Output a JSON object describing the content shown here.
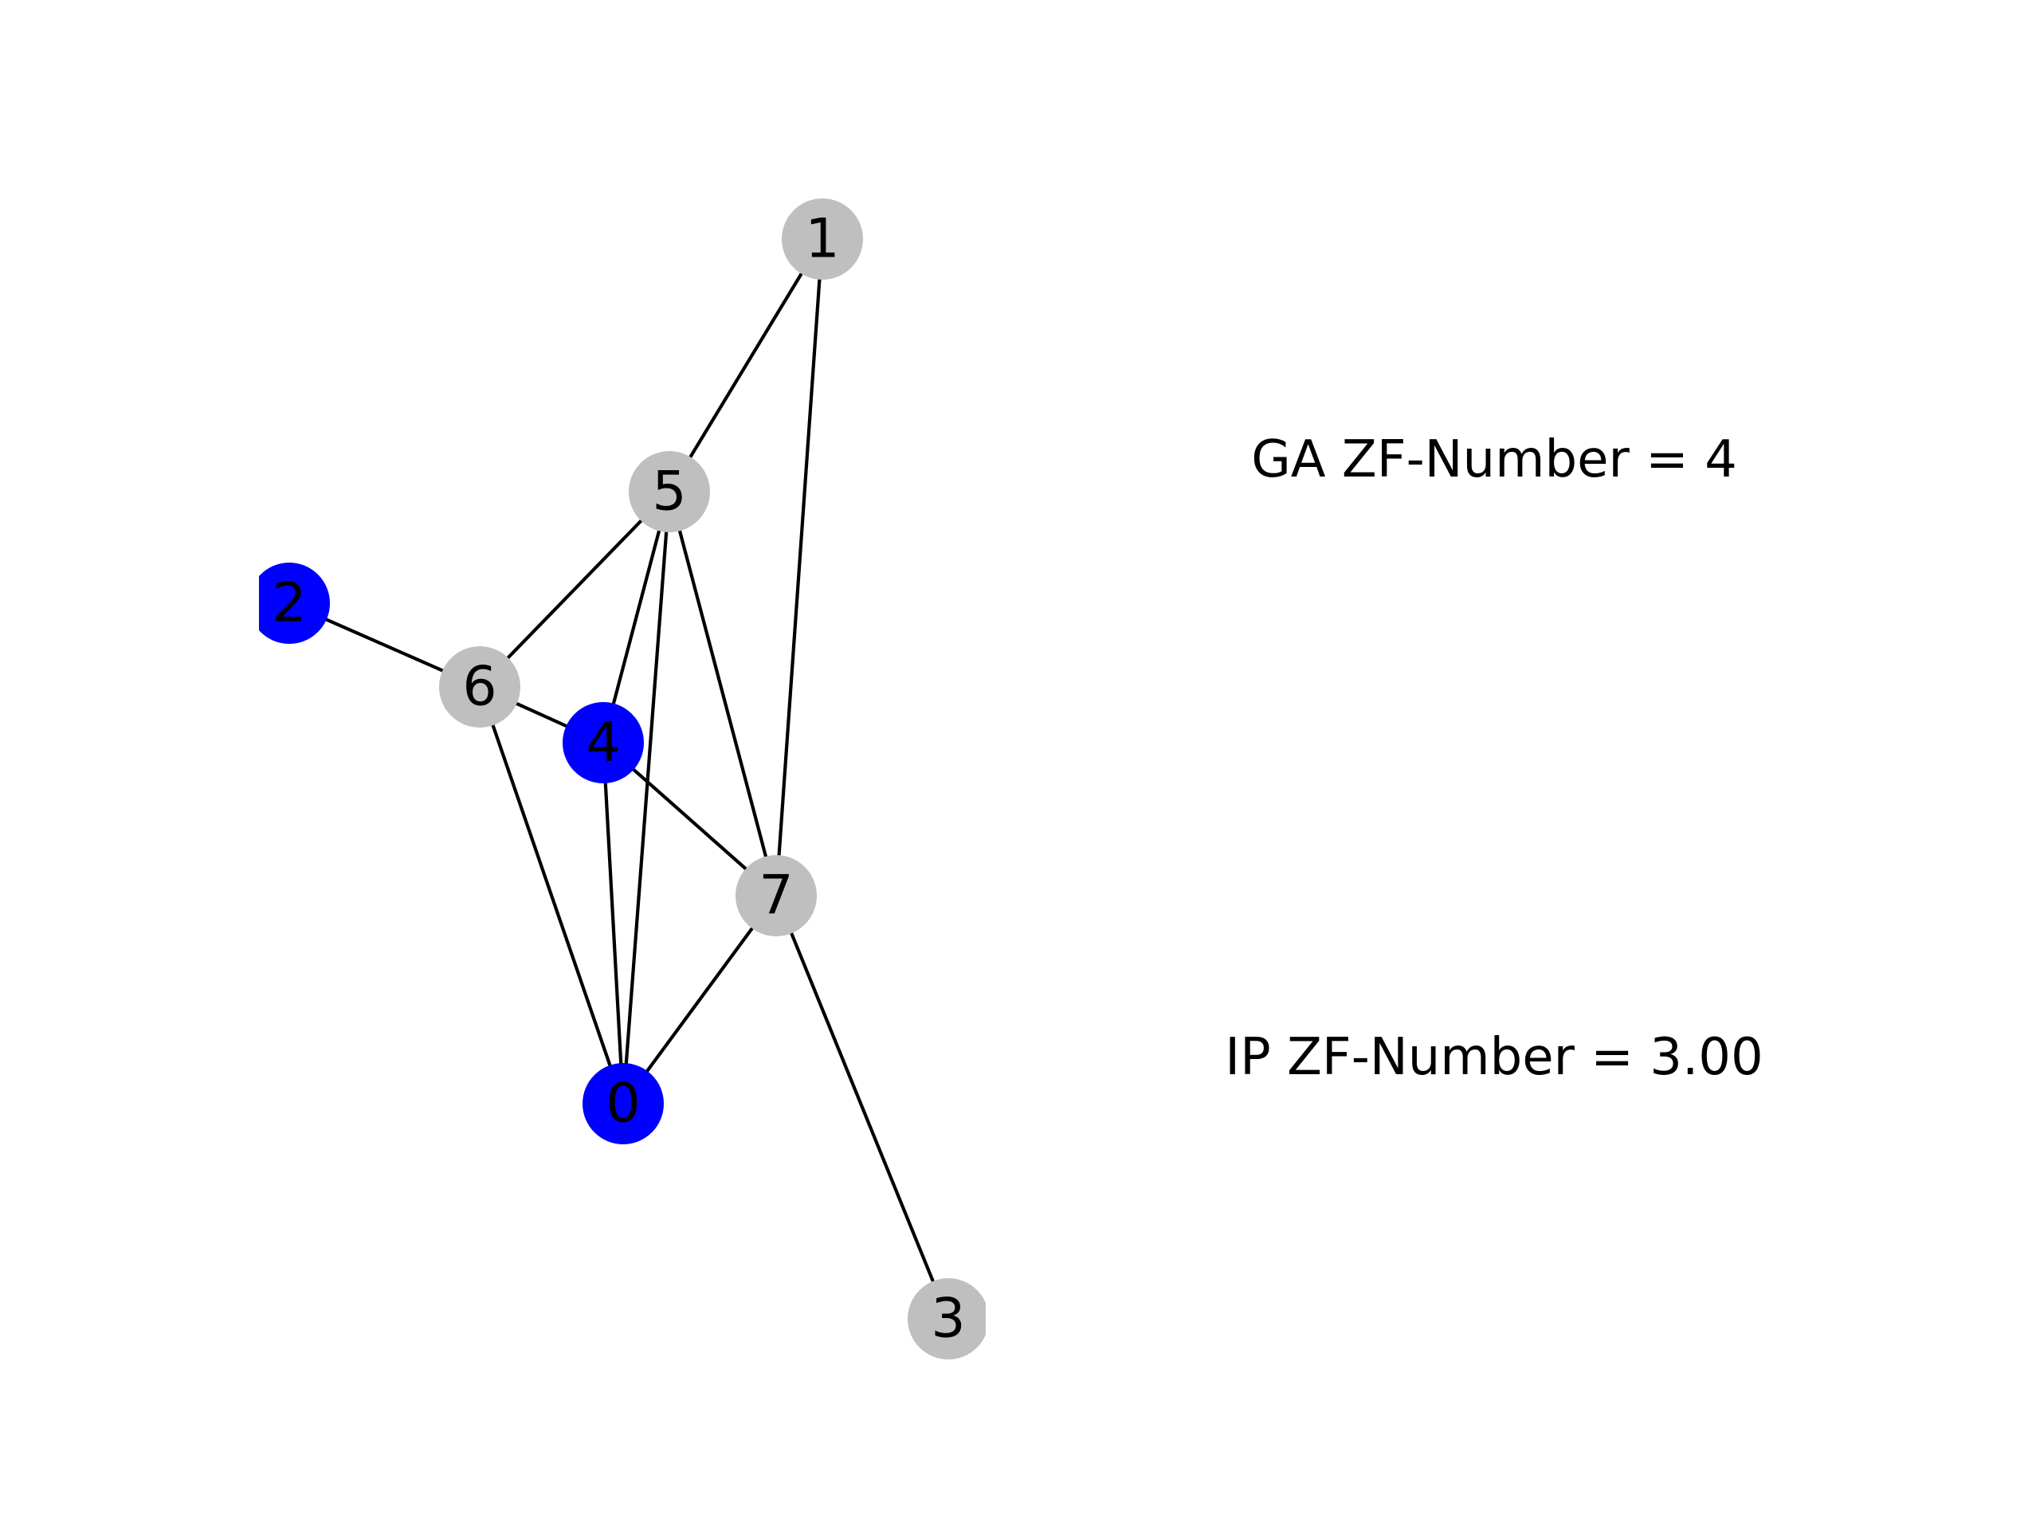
{
  "colors": {
    "selected": "#0000ff",
    "unselected": "#bfbfbf",
    "edge": "#000000"
  },
  "annotations": {
    "ga": "GA ZF-Number = 4",
    "ip": "IP ZF-Number = 3.00"
  },
  "graph": {
    "nodes": [
      {
        "id": "0",
        "label": "0",
        "selected": true
      },
      {
        "id": "1",
        "label": "1",
        "selected": false
      },
      {
        "id": "2",
        "label": "2",
        "selected": true
      },
      {
        "id": "3",
        "label": "3",
        "selected": false
      },
      {
        "id": "4",
        "label": "4",
        "selected": true
      },
      {
        "id": "5",
        "label": "5",
        "selected": false
      },
      {
        "id": "6",
        "label": "6",
        "selected": false
      },
      {
        "id": "7",
        "label": "7",
        "selected": false
      }
    ],
    "edges": [
      [
        "1",
        "5"
      ],
      [
        "1",
        "7"
      ],
      [
        "5",
        "6"
      ],
      [
        "5",
        "4"
      ],
      [
        "5",
        "0"
      ],
      [
        "5",
        "7"
      ],
      [
        "2",
        "6"
      ],
      [
        "6",
        "4"
      ],
      [
        "6",
        "0"
      ],
      [
        "4",
        "7"
      ],
      [
        "4",
        "0"
      ],
      [
        "7",
        "0"
      ],
      [
        "7",
        "3"
      ]
    ]
  }
}
